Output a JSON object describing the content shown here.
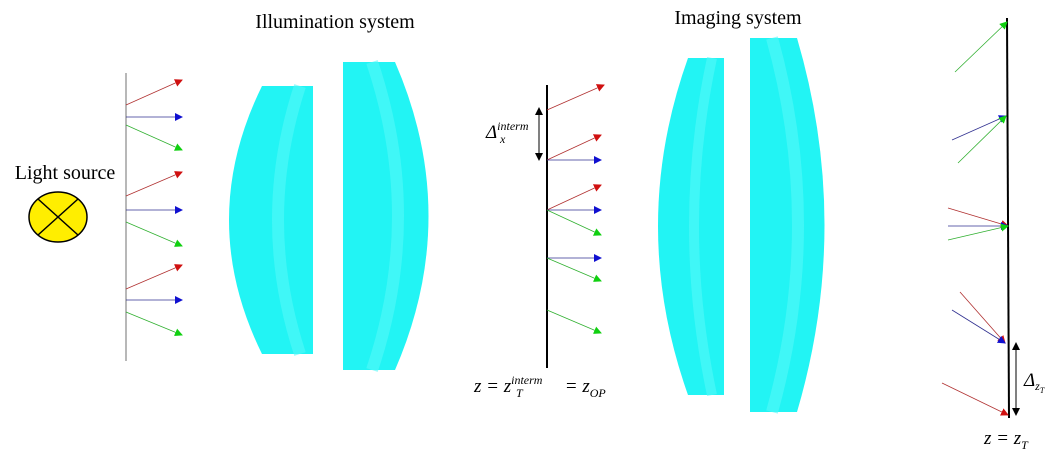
{
  "titles": {
    "illumination": "Illumination system",
    "imaging": "Imaging system"
  },
  "light_source": "Light source",
  "labels": {
    "delta_x": {
      "base": "Δ",
      "sub": "x",
      "sup": "interm"
    },
    "intermediate_plane": {
      "lead": "z = z",
      "sub": "T",
      "sup": "interm",
      "tail": " = z",
      "tail_sub": "OP"
    },
    "delta_z": {
      "base": "Δ",
      "sub": "z",
      "sub_sub": "T"
    },
    "target_plane": {
      "lead": "z = z",
      "sub": "T"
    }
  }
}
